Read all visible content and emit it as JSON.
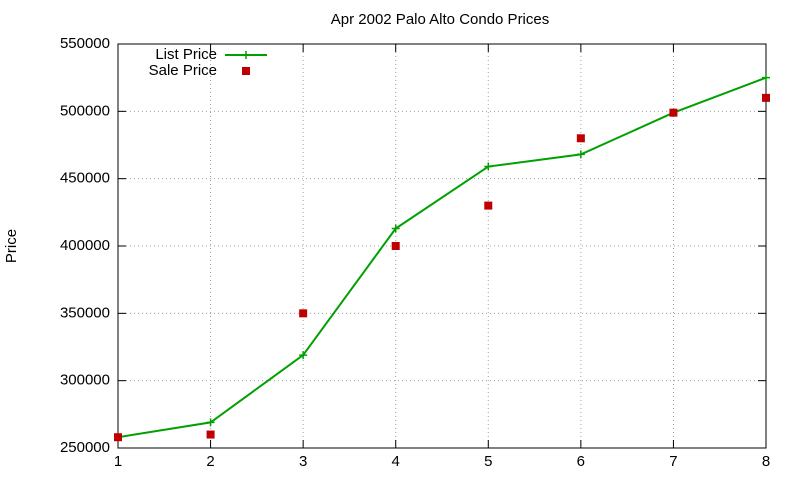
{
  "chart_data": {
    "type": "line",
    "title": "Apr 2002 Palo Alto Condo Prices",
    "y_label": "Price",
    "x": [
      1,
      2,
      3,
      4,
      5,
      6,
      7,
      8
    ],
    "series": [
      {
        "name": "List Price",
        "color": "#00a000",
        "line": true,
        "marker": "plus",
        "values": [
          258000,
          269000,
          319000,
          413000,
          459000,
          468000,
          499000,
          525000
        ]
      },
      {
        "name": "Sale Price",
        "color": "#c00000",
        "line": false,
        "marker": "square",
        "values": [
          258000,
          260000,
          350000,
          400000,
          430000,
          480000,
          499000,
          510000
        ]
      }
    ],
    "xlim": [
      1,
      8
    ],
    "xticks": [
      1,
      2,
      3,
      4,
      5,
      6,
      7,
      8
    ],
    "ylim": [
      250000,
      550000
    ],
    "yticks": [
      250000,
      300000,
      350000,
      400000,
      450000,
      500000,
      550000
    ],
    "grid": true,
    "legend": "top-left"
  }
}
